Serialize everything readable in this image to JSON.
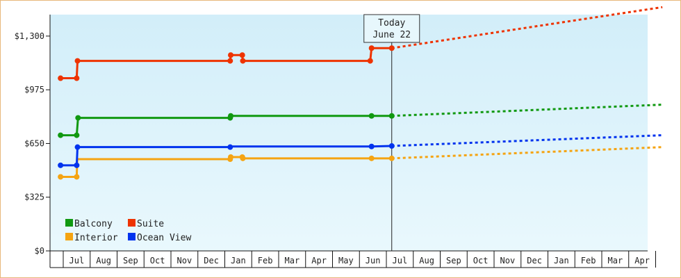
{
  "chart_data": {
    "type": "line",
    "title": "",
    "xlabel": "",
    "ylabel": "",
    "ylim": [
      0,
      1430
    ],
    "y_ticks": [
      "$0",
      "$325",
      "$650",
      "$975",
      "$1,300"
    ],
    "y_tick_values": [
      0,
      325,
      650,
      975,
      1300
    ],
    "months": [
      "Jul",
      "Aug",
      "Sep",
      "Oct",
      "Nov",
      "Dec",
      "Jan",
      "Feb",
      "Mar",
      "Apr",
      "May",
      "Jun",
      "Jul",
      "Aug",
      "Sep",
      "Oct",
      "Nov",
      "Dec",
      "Jan",
      "Feb",
      "Mar",
      "Apr"
    ],
    "x_range_months": [
      -0.6,
      21.75
    ],
    "today": {
      "label_line1": "Today",
      "label_line2": "June 22",
      "x": 11.7
    },
    "grid": false,
    "legend_position": "bottom-left",
    "background_gradient": [
      "#d2eef9",
      "#e9f8fd"
    ],
    "series": [
      {
        "name": "Balcony",
        "color": "#119911",
        "history": [
          [
            -0.6,
            700
          ],
          [
            0.0,
            700
          ],
          [
            0.05,
            805
          ],
          [
            5.7,
            805
          ],
          [
            5.72,
            817
          ],
          [
            10.95,
            817
          ],
          [
            11.7,
            817
          ]
        ],
        "markers": [
          [
            -0.6,
            700
          ],
          [
            0.0,
            700
          ],
          [
            0.05,
            805
          ],
          [
            5.7,
            805
          ],
          [
            5.72,
            817
          ],
          [
            10.95,
            817
          ],
          [
            11.7,
            817
          ]
        ],
        "forecast": [
          [
            11.7,
            817
          ],
          [
            21.75,
            885
          ]
        ]
      },
      {
        "name": "Suite",
        "color": "#ee3300",
        "history": [
          [
            -0.6,
            1045
          ],
          [
            0.0,
            1045
          ],
          [
            0.03,
            1150
          ],
          [
            5.7,
            1150
          ],
          [
            5.72,
            1185
          ],
          [
            6.15,
            1185
          ],
          [
            6.17,
            1150
          ],
          [
            10.9,
            1150
          ],
          [
            10.95,
            1227
          ],
          [
            11.7,
            1227
          ]
        ],
        "markers": [
          [
            -0.6,
            1045
          ],
          [
            0.0,
            1045
          ],
          [
            0.03,
            1150
          ],
          [
            5.7,
            1150
          ],
          [
            5.72,
            1185
          ],
          [
            6.15,
            1185
          ],
          [
            6.17,
            1150
          ],
          [
            10.9,
            1150
          ],
          [
            10.95,
            1227
          ],
          [
            11.7,
            1227
          ]
        ],
        "forecast": [
          [
            11.7,
            1227
          ],
          [
            21.75,
            1475
          ]
        ]
      },
      {
        "name": "Interior",
        "color": "#f5a412",
        "history": [
          [
            -0.6,
            448
          ],
          [
            0.0,
            448
          ],
          [
            0.02,
            555
          ],
          [
            5.7,
            555
          ],
          [
            5.72,
            568
          ],
          [
            6.15,
            568
          ],
          [
            6.17,
            560
          ],
          [
            10.95,
            560
          ],
          [
            11.7,
            560
          ]
        ],
        "markers": [
          [
            -0.6,
            448
          ],
          [
            0.0,
            448
          ],
          [
            5.7,
            555
          ],
          [
            5.72,
            568
          ],
          [
            6.15,
            568
          ],
          [
            6.17,
            560
          ],
          [
            10.95,
            560
          ],
          [
            11.7,
            560
          ]
        ],
        "forecast": [
          [
            11.7,
            560
          ],
          [
            21.75,
            628
          ]
        ]
      },
      {
        "name": "Ocean View",
        "color": "#0033ee",
        "history": [
          [
            -0.6,
            518
          ],
          [
            0.0,
            518
          ],
          [
            0.03,
            628
          ],
          [
            5.7,
            628
          ],
          [
            5.72,
            632
          ],
          [
            10.95,
            632
          ],
          [
            11.7,
            635
          ]
        ],
        "markers": [
          [
            -0.6,
            518
          ],
          [
            0.0,
            518
          ],
          [
            0.03,
            628
          ],
          [
            5.7,
            628
          ],
          [
            10.95,
            632
          ],
          [
            11.7,
            635
          ]
        ],
        "forecast": [
          [
            11.7,
            635
          ],
          [
            21.75,
            700
          ]
        ]
      }
    ]
  }
}
